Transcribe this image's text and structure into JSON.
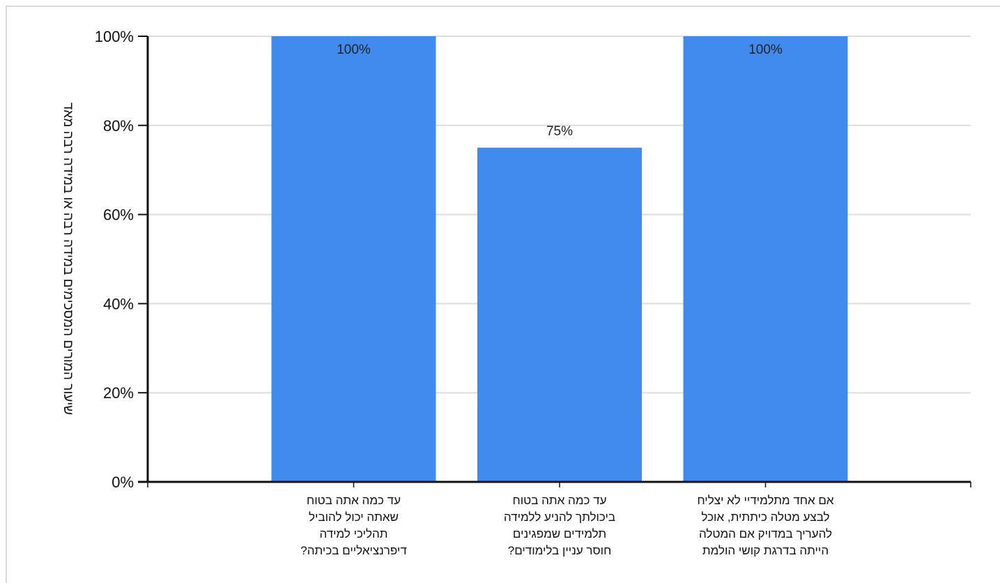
{
  "chart_data": {
    "type": "bar",
    "title": "",
    "xlabel": "",
    "ylabel": "שיעור המורים המסכימים במידה רבה או במידה רבה מאד",
    "ylim": [
      0,
      100
    ],
    "y_ticks": [
      "0%",
      "20%",
      "40%",
      "60%",
      "80%",
      "100%"
    ],
    "grid": true,
    "legend": "none",
    "categories": [
      [
        "עד כמה אתה בטוח",
        "שאתה יכול להוביל",
        "תהליכי למידה",
        "דיפרנציאליים  בכיתה?"
      ],
      [
        "עד כמה אתה בטוח",
        "ביכולתך להניע ללמידה",
        "תלמידים שמפגינים",
        "חוסר  עניין בלימודים?"
      ],
      [
        "אם אחד מתלמידיי לא יצליח",
        "לבצע מטלה כיתתית, אוכל",
        "להעריך במדויק אם המטלה",
        "הייתה בדרגת קושי הולמת"
      ]
    ],
    "values": [
      100,
      75,
      100
    ],
    "data_labels": [
      "100%",
      "75%",
      "100%"
    ],
    "colors": {
      "bar": "#418bef",
      "axis": "#111111",
      "grid": "#dddddd"
    }
  }
}
